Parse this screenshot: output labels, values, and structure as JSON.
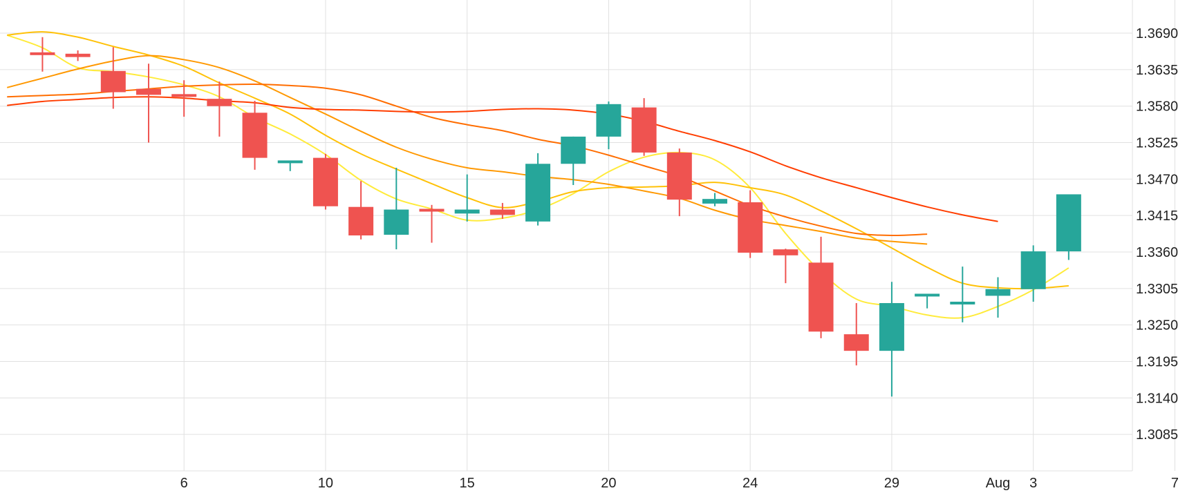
{
  "chart_data": {
    "type": "candlestick",
    "colors": {
      "up": "#26a69a",
      "down": "#ef5350",
      "grid": "#e0e0e0",
      "axis": "#d0d0d0"
    },
    "x_domain": [
      0.8,
      32.8
    ],
    "ylim": [
      1.303,
      1.374
    ],
    "y_ticks": [
      "1.3690",
      "1.3635",
      "1.3580",
      "1.3525",
      "1.3470",
      "1.3415",
      "1.3360",
      "1.3305",
      "1.3250",
      "1.3195",
      "1.3140",
      "1.3085"
    ],
    "x_ticks": [
      {
        "label": "6",
        "x": 6
      },
      {
        "label": "10",
        "x": 10
      },
      {
        "label": "15",
        "x": 14
      },
      {
        "label": "20",
        "x": 18
      },
      {
        "label": "24",
        "x": 22
      },
      {
        "label": "29",
        "x": 26
      },
      {
        "label": "Aug",
        "x": 29
      },
      {
        "label": "3",
        "x": 30
      },
      {
        "label": "7",
        "x": 34
      }
    ],
    "candles": [
      {
        "x": 2,
        "o": 1.3659,
        "h": 1.3684,
        "l": 1.3632,
        "c": 1.3656
      },
      {
        "x": 3,
        "o": 1.3659,
        "h": 1.3664,
        "l": 1.3648,
        "c": 1.3654
      },
      {
        "x": 4,
        "o": 1.3633,
        "h": 1.3669,
        "l": 1.3576,
        "c": 1.3601
      },
      {
        "x": 5,
        "o": 1.3606,
        "h": 1.3644,
        "l": 1.3525,
        "c": 1.3597
      },
      {
        "x": 6,
        "o": 1.3596,
        "h": 1.3619,
        "l": 1.3564,
        "c": 1.3594
      },
      {
        "x": 7,
        "o": 1.3591,
        "h": 1.3617,
        "l": 1.3534,
        "c": 1.358
      },
      {
        "x": 8,
        "o": 1.357,
        "h": 1.3588,
        "l": 1.3484,
        "c": 1.3502
      },
      {
        "x": 9,
        "o": 1.3493,
        "h": 1.3496,
        "l": 1.3482,
        "c": 1.3496
      },
      {
        "x": 10,
        "o": 1.3502,
        "h": 1.3508,
        "l": 1.3424,
        "c": 1.3429
      },
      {
        "x": 11,
        "o": 1.3428,
        "h": 1.3467,
        "l": 1.3379,
        "c": 1.3385
      },
      {
        "x": 12,
        "o": 1.3386,
        "h": 1.3487,
        "l": 1.3364,
        "c": 1.3424
      },
      {
        "x": 13,
        "o": 1.3423,
        "h": 1.3431,
        "l": 1.3374,
        "c": 1.3419
      },
      {
        "x": 14,
        "o": 1.3418,
        "h": 1.3477,
        "l": 1.3406,
        "c": 1.3424
      },
      {
        "x": 15,
        "o": 1.3424,
        "h": 1.3434,
        "l": 1.341,
        "c": 1.3416
      },
      {
        "x": 16,
        "o": 1.3406,
        "h": 1.3509,
        "l": 1.34,
        "c": 1.3493
      },
      {
        "x": 17,
        "o": 1.3493,
        "h": 1.3534,
        "l": 1.3461,
        "c": 1.3534
      },
      {
        "x": 18,
        "o": 1.3534,
        "h": 1.3587,
        "l": 1.3515,
        "c": 1.3583
      },
      {
        "x": 19,
        "o": 1.3578,
        "h": 1.3592,
        "l": 1.3505,
        "c": 1.351
      },
      {
        "x": 20,
        "o": 1.351,
        "h": 1.3516,
        "l": 1.3414,
        "c": 1.3439
      },
      {
        "x": 21,
        "o": 1.3433,
        "h": 1.3449,
        "l": 1.3429,
        "c": 1.344
      },
      {
        "x": 22,
        "o": 1.3435,
        "h": 1.3453,
        "l": 1.3351,
        "c": 1.3359
      },
      {
        "x": 23,
        "o": 1.3364,
        "h": 1.3365,
        "l": 1.3313,
        "c": 1.3355
      },
      {
        "x": 24,
        "o": 1.3344,
        "h": 1.3383,
        "l": 1.323,
        "c": 1.324
      },
      {
        "x": 25,
        "o": 1.3236,
        "h": 1.3283,
        "l": 1.3189,
        "c": 1.3211
      },
      {
        "x": 26,
        "o": 1.3211,
        "h": 1.3315,
        "l": 1.3142,
        "c": 1.3283
      },
      {
        "x": 27,
        "o": 1.3295,
        "h": 1.3295,
        "l": 1.3275,
        "c": 1.3295
      },
      {
        "x": 28,
        "o": 1.328,
        "h": 1.3338,
        "l": 1.3254,
        "c": 1.3283
      },
      {
        "x": 29,
        "o": 1.3294,
        "h": 1.3322,
        "l": 1.3261,
        "c": 1.3304
      },
      {
        "x": 30,
        "o": 1.3304,
        "h": 1.337,
        "l": 1.3285,
        "c": 1.3361
      },
      {
        "x": 31,
        "o": 1.3361,
        "h": 1.3447,
        "l": 1.3348,
        "c": 1.3447
      }
    ],
    "moving_averages": [
      {
        "color": "#ffeb3b",
        "points": [
          [
            1,
            1.3687
          ],
          [
            2,
            1.3668
          ],
          [
            3,
            1.3638
          ],
          [
            4,
            1.3632
          ],
          [
            5,
            1.3624
          ],
          [
            6,
            1.3612
          ],
          [
            7,
            1.3594
          ],
          [
            8,
            1.3563
          ],
          [
            9,
            1.3538
          ],
          [
            10,
            1.3507
          ],
          [
            11,
            1.3468
          ],
          [
            12,
            1.344
          ],
          [
            13,
            1.3425
          ],
          [
            14,
            1.3408
          ],
          [
            15,
            1.3411
          ],
          [
            16,
            1.3424
          ],
          [
            17,
            1.3448
          ],
          [
            18,
            1.3481
          ],
          [
            19,
            1.3503
          ],
          [
            20,
            1.351
          ],
          [
            21,
            1.3499
          ],
          [
            22,
            1.3457
          ],
          [
            23,
            1.3388
          ],
          [
            24,
            1.333
          ],
          [
            25,
            1.3289
          ],
          [
            26,
            1.3278
          ],
          [
            27,
            1.3265
          ],
          [
            28,
            1.3261
          ],
          [
            29,
            1.3278
          ],
          [
            30,
            1.3303
          ],
          [
            31,
            1.3336
          ]
        ]
      },
      {
        "color": "#ffc107",
        "points": [
          [
            1,
            1.3687
          ],
          [
            2,
            1.3692
          ],
          [
            3,
            1.3684
          ],
          [
            4,
            1.367
          ],
          [
            5,
            1.3657
          ],
          [
            6,
            1.364
          ],
          [
            7,
            1.3615
          ],
          [
            8,
            1.3592
          ],
          [
            9,
            1.3568
          ],
          [
            10,
            1.3536
          ],
          [
            11,
            1.3508
          ],
          [
            12,
            1.3485
          ],
          [
            13,
            1.3463
          ],
          [
            14,
            1.3442
          ],
          [
            15,
            1.3427
          ],
          [
            16,
            1.3436
          ],
          [
            17,
            1.3451
          ],
          [
            18,
            1.3457
          ],
          [
            19,
            1.3458
          ],
          [
            20,
            1.346
          ],
          [
            21,
            1.3465
          ],
          [
            22,
            1.3457
          ],
          [
            23,
            1.3446
          ],
          [
            24,
            1.3422
          ],
          [
            25,
            1.3395
          ],
          [
            26,
            1.3366
          ],
          [
            27,
            1.3337
          ],
          [
            28,
            1.3313
          ],
          [
            29,
            1.3306
          ],
          [
            30,
            1.3305
          ],
          [
            31,
            1.3309
          ]
        ]
      },
      {
        "color": "#ff9800",
        "points": [
          [
            1,
            1.3608
          ],
          [
            2,
            1.3622
          ],
          [
            3,
            1.3636
          ],
          [
            4,
            1.3648
          ],
          [
            5,
            1.3656
          ],
          [
            6,
            1.365
          ],
          [
            7,
            1.3638
          ],
          [
            8,
            1.3618
          ],
          [
            9,
            1.3593
          ],
          [
            10,
            1.3568
          ],
          [
            11,
            1.3542
          ],
          [
            12,
            1.3518
          ],
          [
            13,
            1.35
          ],
          [
            14,
            1.3487
          ],
          [
            15,
            1.3481
          ],
          [
            16,
            1.3474
          ],
          [
            17,
            1.3469
          ],
          [
            18,
            1.3462
          ],
          [
            19,
            1.3452
          ],
          [
            20,
            1.3441
          ],
          [
            21,
            1.3423
          ],
          [
            22,
            1.3409
          ],
          [
            23,
            1.34
          ],
          [
            24,
            1.3391
          ],
          [
            25,
            1.3381
          ],
          [
            26,
            1.3376
          ],
          [
            27,
            1.3372
          ]
        ]
      },
      {
        "color": "#ff6d00",
        "points": [
          [
            1,
            1.3594
          ],
          [
            2,
            1.3596
          ],
          [
            3,
            1.3598
          ],
          [
            4,
            1.3602
          ],
          [
            5,
            1.3606
          ],
          [
            6,
            1.361
          ],
          [
            7,
            1.3612
          ],
          [
            8,
            1.3613
          ],
          [
            9,
            1.3611
          ],
          [
            10,
            1.3607
          ],
          [
            11,
            1.3597
          ],
          [
            12,
            1.358
          ],
          [
            13,
            1.3563
          ],
          [
            14,
            1.3552
          ],
          [
            15,
            1.3543
          ],
          [
            16,
            1.353
          ],
          [
            17,
            1.352
          ],
          [
            18,
            1.3506
          ],
          [
            19,
            1.349
          ],
          [
            20,
            1.3474
          ],
          [
            21,
            1.3452
          ],
          [
            22,
            1.343
          ],
          [
            23,
            1.3413
          ],
          [
            24,
            1.3399
          ],
          [
            25,
            1.3388
          ],
          [
            26,
            1.3385
          ],
          [
            27,
            1.3387
          ]
        ]
      },
      {
        "color": "#ff3d00",
        "points": [
          [
            1,
            1.3581
          ],
          [
            2,
            1.3587
          ],
          [
            3,
            1.359
          ],
          [
            4,
            1.3593
          ],
          [
            5,
            1.3594
          ],
          [
            6,
            1.3592
          ],
          [
            7,
            1.3588
          ],
          [
            8,
            1.3585
          ],
          [
            9,
            1.3578
          ],
          [
            10,
            1.3575
          ],
          [
            11,
            1.3574
          ],
          [
            12,
            1.3572
          ],
          [
            13,
            1.3571
          ],
          [
            14,
            1.3572
          ],
          [
            15,
            1.3575
          ],
          [
            16,
            1.3576
          ],
          [
            17,
            1.3574
          ],
          [
            18,
            1.3568
          ],
          [
            19,
            1.3557
          ],
          [
            20,
            1.3542
          ],
          [
            21,
            1.3528
          ],
          [
            22,
            1.3511
          ],
          [
            23,
            1.349
          ],
          [
            24,
            1.3472
          ],
          [
            25,
            1.3457
          ],
          [
            26,
            1.3442
          ],
          [
            27,
            1.3428
          ],
          [
            28,
            1.3416
          ],
          [
            29,
            1.3406
          ]
        ]
      }
    ]
  }
}
